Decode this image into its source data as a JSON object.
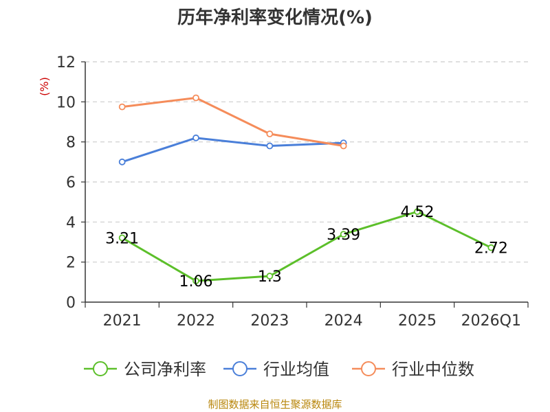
{
  "chart_data": {
    "type": "line",
    "title": "历年净利率变化情况(%)",
    "ylabel": "(%)",
    "xlabel": "",
    "categories": [
      "2021",
      "2022",
      "2023",
      "2024",
      "2025",
      "2026Q1"
    ],
    "ylim": [
      0,
      12
    ],
    "yticks": [
      0,
      2,
      4,
      6,
      8,
      10,
      12
    ],
    "grid": true,
    "legend_position": "bottom",
    "series": [
      {
        "name": "公司净利率",
        "color": "#5cbf2a",
        "values": [
          3.21,
          1.06,
          1.3,
          3.39,
          4.52,
          2.72
        ],
        "labels": [
          "3.21",
          "1.06",
          "1.3",
          "3.39",
          "4.52",
          "2.72"
        ]
      },
      {
        "name": "行业均值",
        "color": "#4a7fd9",
        "values": [
          7.0,
          8.2,
          7.8,
          7.95,
          null,
          null
        ]
      },
      {
        "name": "行业中位数",
        "color": "#f58c5a",
        "values": [
          9.75,
          10.2,
          8.4,
          7.8,
          null,
          null
        ]
      }
    ]
  },
  "source": "制图数据来自恒生聚源数据库"
}
